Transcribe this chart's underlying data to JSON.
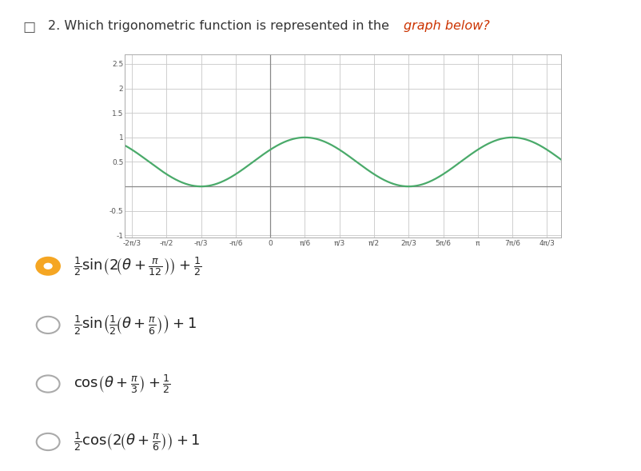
{
  "title_normal": "2. Which trigonometric function is represented in the ",
  "title_red": "graph below?",
  "bg_color": "#ffffff",
  "graph_bg": "#ffffff",
  "grid_color": "#c8c8c8",
  "axis_line_color": "#888888",
  "curve_color": "#4aaa6a",
  "curve_linewidth": 1.6,
  "xlim": [
    -2.2,
    4.4
  ],
  "ylim": [
    -1.05,
    2.7
  ],
  "yticks": [
    -1.0,
    -0.5,
    0.5,
    1.0,
    1.5,
    2.0,
    2.5
  ],
  "xtick_fracs": [
    [
      "-π/2",
      -1,
      2
    ],
    [
      "-π/3",
      -1,
      3
    ],
    [
      "-π/6",
      -1,
      6
    ],
    [
      "0",
      0,
      1
    ],
    [
      "π/6",
      1,
      6
    ],
    [
      "π/3",
      1,
      3
    ],
    [
      "π/2",
      1,
      2
    ],
    [
      "2π/3",
      2,
      3
    ],
    [
      "5π/6",
      5,
      6
    ],
    [
      "π",
      1,
      1
    ],
    [
      "7π/6",
      7,
      6
    ],
    [
      "4π/3",
      4,
      3
    ]
  ],
  "options": [
    {
      "selected": true
    },
    {
      "selected": false
    },
    {
      "selected": false
    },
    {
      "selected": false
    }
  ],
  "radio_selected_color": "#f5a623",
  "radio_unselected_color": "#aaaaaa",
  "option_text_color": "#222222",
  "checkbox_color": "#555555",
  "title_color": "#333333",
  "title_red_color": "#cc3300"
}
